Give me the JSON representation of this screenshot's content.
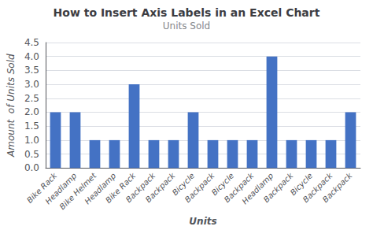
{
  "chart_data": {
    "type": "bar",
    "title": "How to Insert Axis Labels in an Excel Chart",
    "subtitle": "Units Sold",
    "xlabel": "Units",
    "ylabel": "Amount  of Units Sold",
    "categories": [
      "Bike Rack",
      "Headlamp",
      "Bike Helmet",
      "Headlamp",
      "Bike Rack",
      "Backpack",
      "Backpack",
      "Bicycle",
      "Backpack",
      "Bicycle",
      "Backpack",
      "Headlamp",
      "Backpack",
      "Bicycle",
      "Backpack",
      "Backpack"
    ],
    "values": [
      2,
      2,
      1,
      1,
      3,
      1,
      1,
      2,
      1,
      1,
      1,
      4,
      1,
      1,
      1,
      2
    ],
    "color": "#4472C4",
    "ylim": [
      0,
      4.5
    ],
    "yticks": [
      {
        "value": 0,
        "label": "0.0"
      },
      0.5,
      {
        "value": 1,
        "label": "1.0"
      },
      1.5,
      {
        "value": 2,
        "label": "2.0"
      },
      2.5,
      {
        "value": 3,
        "label": "3.0"
      },
      3.5,
      {
        "value": 4,
        "label": "4.0"
      },
      4.5
    ],
    "grid": true
  }
}
